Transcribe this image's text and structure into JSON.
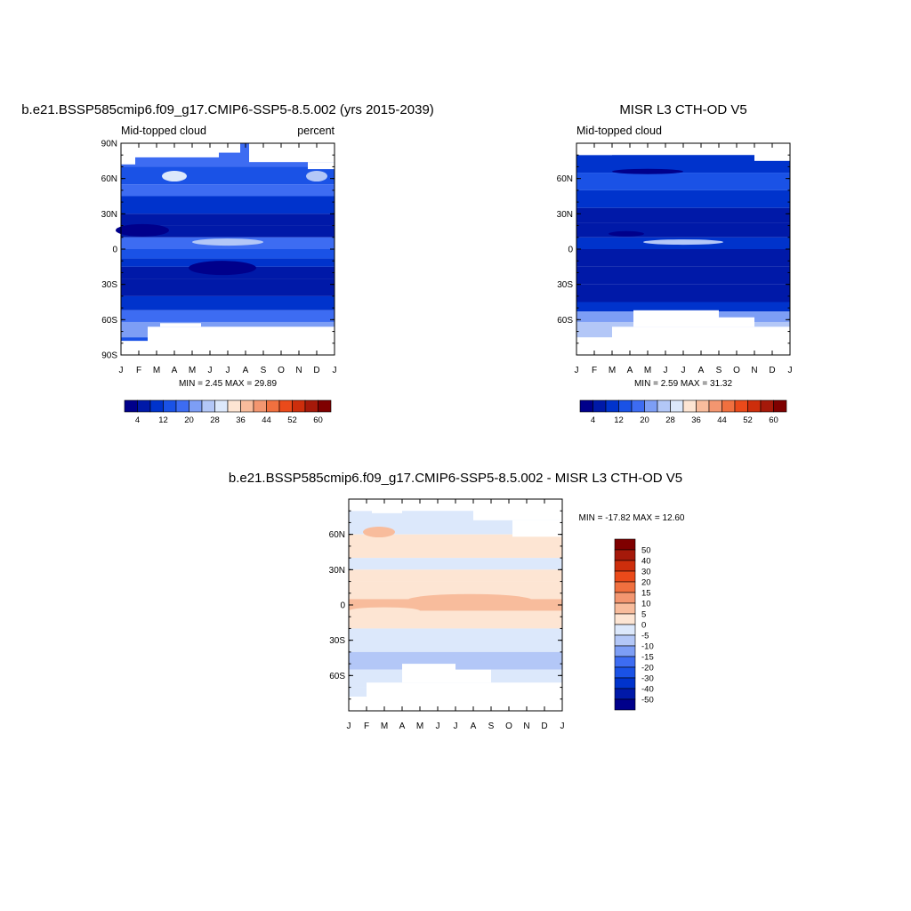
{
  "figure": {
    "panels": [
      {
        "title": "b.e21.BSSP585cmip6.f09_g17.CMIP6-SSP5-8.5.002 (yrs 2015-2039)",
        "left_label": "Mid-topped cloud",
        "right_label": "percent",
        "stats": "MIN =   2.45 MAX =  29.89",
        "y_ticks": [
          "90N",
          "60N",
          "30N",
          "0",
          "30S",
          "60S",
          "90S"
        ],
        "x_ticks": [
          "J",
          "F",
          "M",
          "A",
          "M",
          "J",
          "J",
          "A",
          "S",
          "O",
          "N",
          "D",
          "J"
        ],
        "colorbar": {
          "labels": [
            "4",
            "12",
            "20",
            "28",
            "36",
            "44",
            "52",
            "60"
          ],
          "colors": [
            "#00008b",
            "#0019a8",
            "#0033cc",
            "#1a52e6",
            "#3d6cf2",
            "#7d9ef5",
            "#b3c7f7",
            "#dce8fb",
            "#fde5d3",
            "#f8bc9c",
            "#f39670",
            "#f0703f",
            "#ea4a1a",
            "#cd2e0c",
            "#a5190a",
            "#7f0000"
          ]
        }
      },
      {
        "title": "MISR L3 CTH-OD V5",
        "left_label": "Mid-topped cloud",
        "right_label": "",
        "stats": "MIN =   2.59 MAX =  31.32",
        "y_ticks": [
          "60N",
          "30N",
          "0",
          "30S",
          "60S"
        ],
        "x_ticks": [
          "J",
          "F",
          "M",
          "A",
          "M",
          "J",
          "J",
          "A",
          "S",
          "O",
          "N",
          "D",
          "J"
        ],
        "colorbar": {
          "labels": [
            "4",
            "12",
            "20",
            "28",
            "36",
            "44",
            "52",
            "60"
          ],
          "colors": [
            "#00008b",
            "#0019a8",
            "#0033cc",
            "#1a52e6",
            "#3d6cf2",
            "#7d9ef5",
            "#b3c7f7",
            "#dce8fb",
            "#fde5d3",
            "#f8bc9c",
            "#f39670",
            "#f0703f",
            "#ea4a1a",
            "#cd2e0c",
            "#a5190a",
            "#7f0000"
          ]
        }
      },
      {
        "title": "b.e21.BSSP585cmip6.f09_g17.CMIP6-SSP5-8.5.002 - MISR L3 CTH-OD V5",
        "stats": "MIN = -17.82 MAX =  12.60",
        "y_ticks": [
          "60N",
          "30N",
          "0",
          "30S",
          "60S"
        ],
        "x_ticks": [
          "J",
          "F",
          "M",
          "A",
          "M",
          "J",
          "J",
          "A",
          "S",
          "O",
          "N",
          "D",
          "J"
        ],
        "colorbar": {
          "labels": [
            "50",
            "40",
            "30",
            "20",
            "15",
            "10",
            "5",
            "0",
            "-5",
            "-10",
            "-15",
            "-20",
            "-30",
            "-40",
            "-50"
          ],
          "colors": [
            "#7f0000",
            "#a5190a",
            "#cd2e0c",
            "#ea4a1a",
            "#f0703f",
            "#f39670",
            "#f8bc9c",
            "#fde5d3",
            "#dce8fb",
            "#b3c7f7",
            "#7d9ef5",
            "#3d6cf2",
            "#1a52e6",
            "#0033cc",
            "#0019a8",
            "#00008b"
          ]
        }
      }
    ]
  },
  "chart_data": [
    {
      "type": "heatmap",
      "title": "b.e21.BSSP585cmip6.f09_g17.CMIP6-SSP5-8.5.002 (yrs 2015-2039)",
      "subtitle": "Mid-topped cloud",
      "units": "percent",
      "x": [
        "J",
        "F",
        "M",
        "A",
        "M",
        "J",
        "J",
        "A",
        "S",
        "O",
        "N",
        "D",
        "J"
      ],
      "y": [
        "90N",
        "60N",
        "30N",
        "0",
        "30S",
        "60S",
        "90S"
      ],
      "ylim": [
        -90,
        90
      ],
      "min": 2.45,
      "max": 29.89,
      "colorbar_levels": [
        4,
        8,
        12,
        16,
        20,
        24,
        28,
        32,
        36,
        40,
        44,
        48,
        52,
        56,
        60
      ]
    },
    {
      "type": "heatmap",
      "title": "MISR L3 CTH-OD V5",
      "subtitle": "Mid-topped cloud",
      "x": [
        "J",
        "F",
        "M",
        "A",
        "M",
        "J",
        "J",
        "A",
        "S",
        "O",
        "N",
        "D",
        "J"
      ],
      "y": [
        "60N",
        "30N",
        "0",
        "30S",
        "60S"
      ],
      "ylim": [
        -90,
        90
      ],
      "min": 2.59,
      "max": 31.32,
      "colorbar_levels": [
        4,
        8,
        12,
        16,
        20,
        24,
        28,
        32,
        36,
        40,
        44,
        48,
        52,
        56,
        60
      ]
    },
    {
      "type": "heatmap",
      "title": "b.e21.BSSP585cmip6.f09_g17.CMIP6-SSP5-8.5.002 - MISR L3 CTH-OD V5",
      "x": [
        "J",
        "F",
        "M",
        "A",
        "M",
        "J",
        "J",
        "A",
        "S",
        "O",
        "N",
        "D",
        "J"
      ],
      "y": [
        "60N",
        "30N",
        "0",
        "30S",
        "60S"
      ],
      "ylim": [
        -90,
        90
      ],
      "min": -17.82,
      "max": 12.6,
      "colorbar_levels": [
        -50,
        -40,
        -30,
        -20,
        -15,
        -10,
        -5,
        0,
        5,
        10,
        15,
        20,
        30,
        40,
        50
      ]
    }
  ]
}
